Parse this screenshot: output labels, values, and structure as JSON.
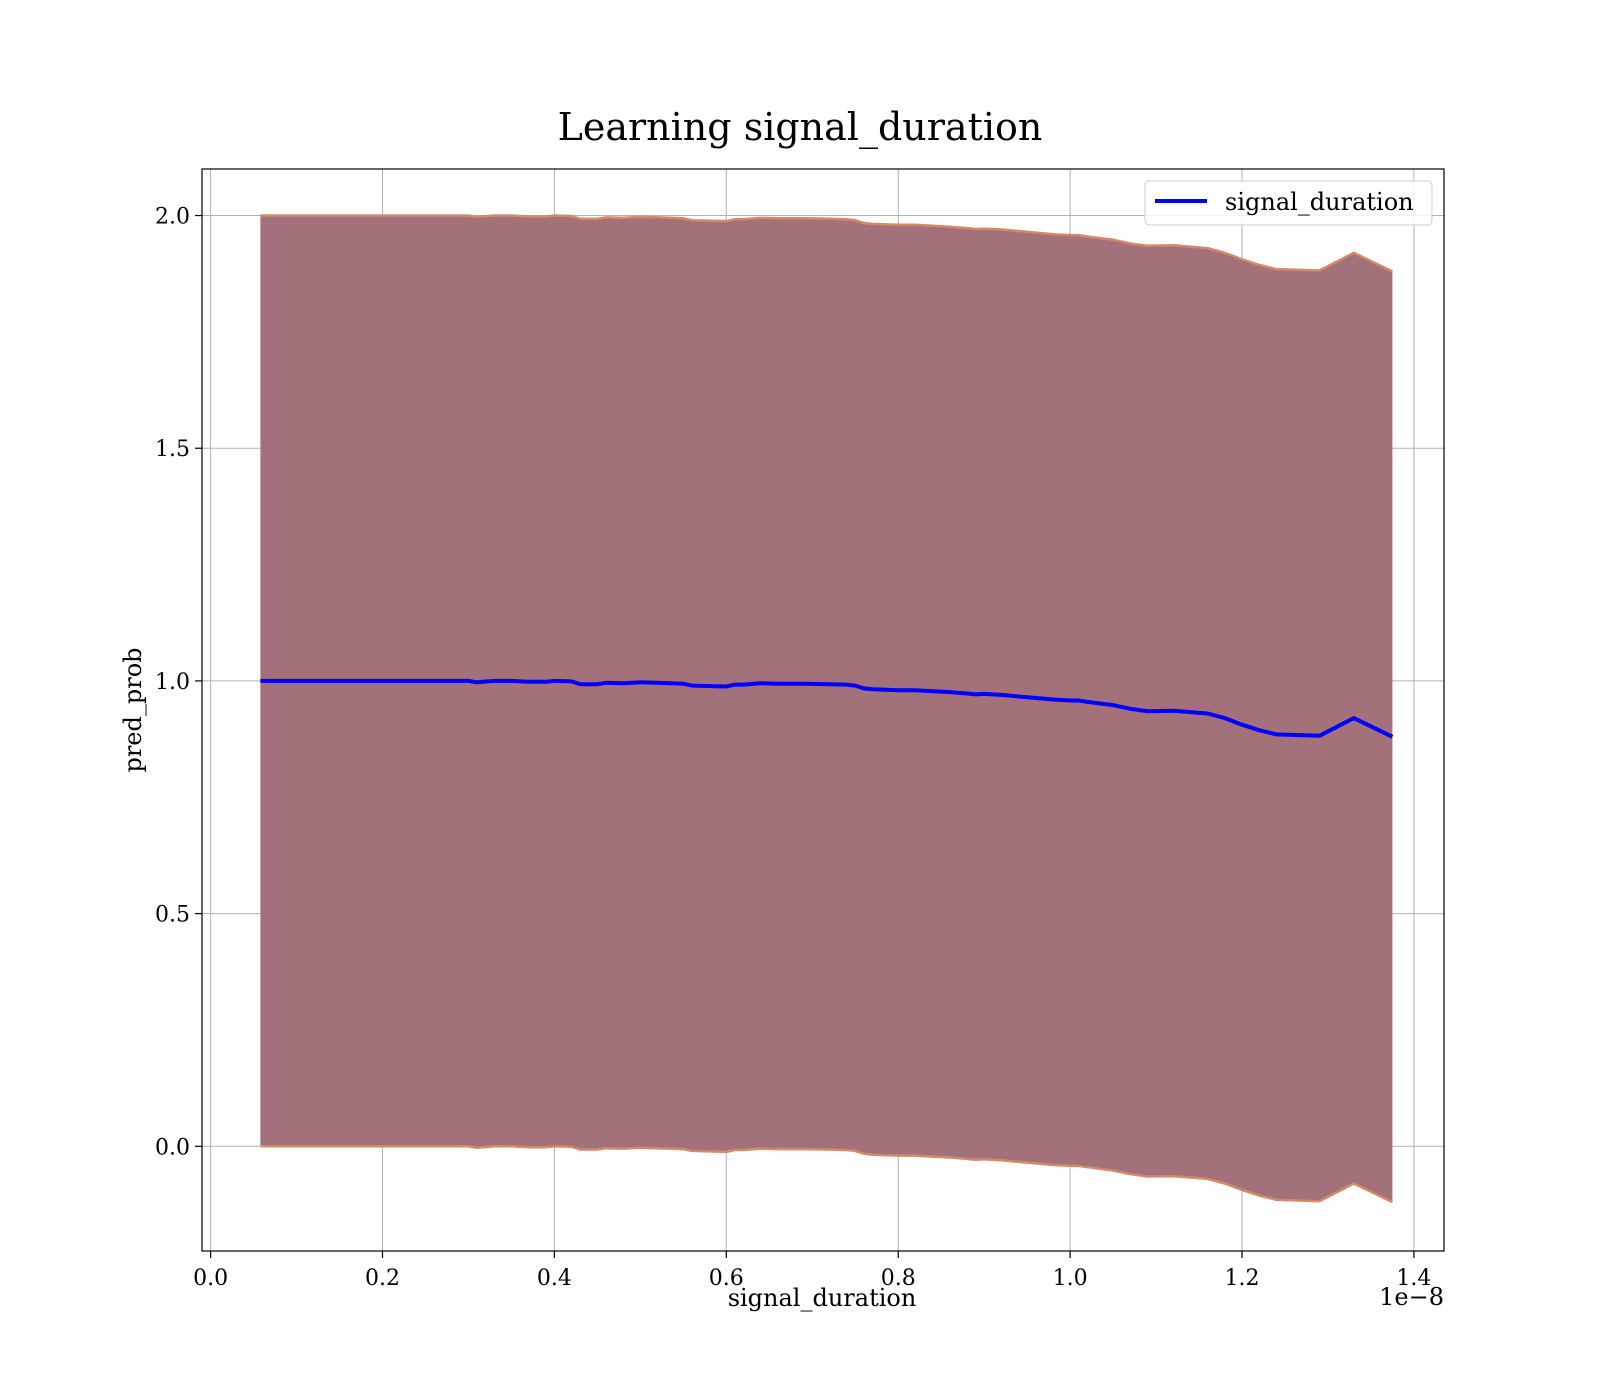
{
  "chart_data": {
    "type": "area",
    "title": "Learning signal_duration",
    "xlabel": "signal_duration",
    "ylabel": "pred_prob",
    "x_offset_label": "1e−8",
    "xlim": [
      -0.01,
      1.435
    ],
    "ylim": [
      -0.225,
      2.1
    ],
    "x_ticks": [
      0.0,
      0.2,
      0.4,
      0.6,
      0.8,
      1.0,
      1.2,
      1.4
    ],
    "x_tick_labels": [
      "0.0",
      "0.2",
      "0.4",
      "0.6",
      "0.8",
      "1.0",
      "1.2",
      "1.4"
    ],
    "y_ticks": [
      0.0,
      0.5,
      1.0,
      1.5,
      2.0
    ],
    "y_tick_labels": [
      "0.0",
      "0.5",
      "1.0",
      "1.5",
      "2.0"
    ],
    "grid": true,
    "legend_position": "top-right",
    "series": [
      {
        "name": "signal_duration",
        "color": "#0000ff",
        "x": [
          0.058,
          0.08,
          0.1,
          0.12,
          0.15,
          0.18,
          0.2,
          0.22,
          0.24,
          0.26,
          0.28,
          0.3,
          0.31,
          0.33,
          0.35,
          0.37,
          0.39,
          0.4,
          0.42,
          0.43,
          0.45,
          0.46,
          0.48,
          0.5,
          0.52,
          0.55,
          0.56,
          0.6,
          0.61,
          0.62,
          0.64,
          0.66,
          0.69,
          0.72,
          0.74,
          0.75,
          0.76,
          0.77,
          0.8,
          0.82,
          0.86,
          0.88,
          0.89,
          0.9,
          0.92,
          0.95,
          0.98,
          1.0,
          1.01,
          1.02,
          1.05,
          1.07,
          1.09,
          1.12,
          1.16,
          1.18,
          1.2,
          1.22,
          1.24,
          1.29,
          1.33,
          1.375
        ],
        "values": [
          1.0,
          1.0,
          1.0,
          1.0,
          1.0,
          1.0,
          1.0,
          1.0,
          1.0,
          1.0,
          1.0,
          1.0,
          0.997,
          1.0,
          1.0,
          0.998,
          0.998,
          1.0,
          0.999,
          0.993,
          0.993,
          0.996,
          0.995,
          0.997,
          0.996,
          0.994,
          0.99,
          0.988,
          0.992,
          0.992,
          0.995,
          0.994,
          0.994,
          0.993,
          0.992,
          0.99,
          0.984,
          0.982,
          0.98,
          0.98,
          0.976,
          0.973,
          0.971,
          0.972,
          0.97,
          0.965,
          0.96,
          0.958,
          0.958,
          0.955,
          0.948,
          0.94,
          0.935,
          0.936,
          0.93,
          0.92,
          0.906,
          0.894,
          0.885,
          0.882,
          0.92,
          0.88
        ]
      }
    ],
    "band": {
      "fill_color": "#a2717a",
      "edge_color": "#d4896a",
      "description_upper": "values + 1",
      "description_lower": "values - 1"
    }
  }
}
